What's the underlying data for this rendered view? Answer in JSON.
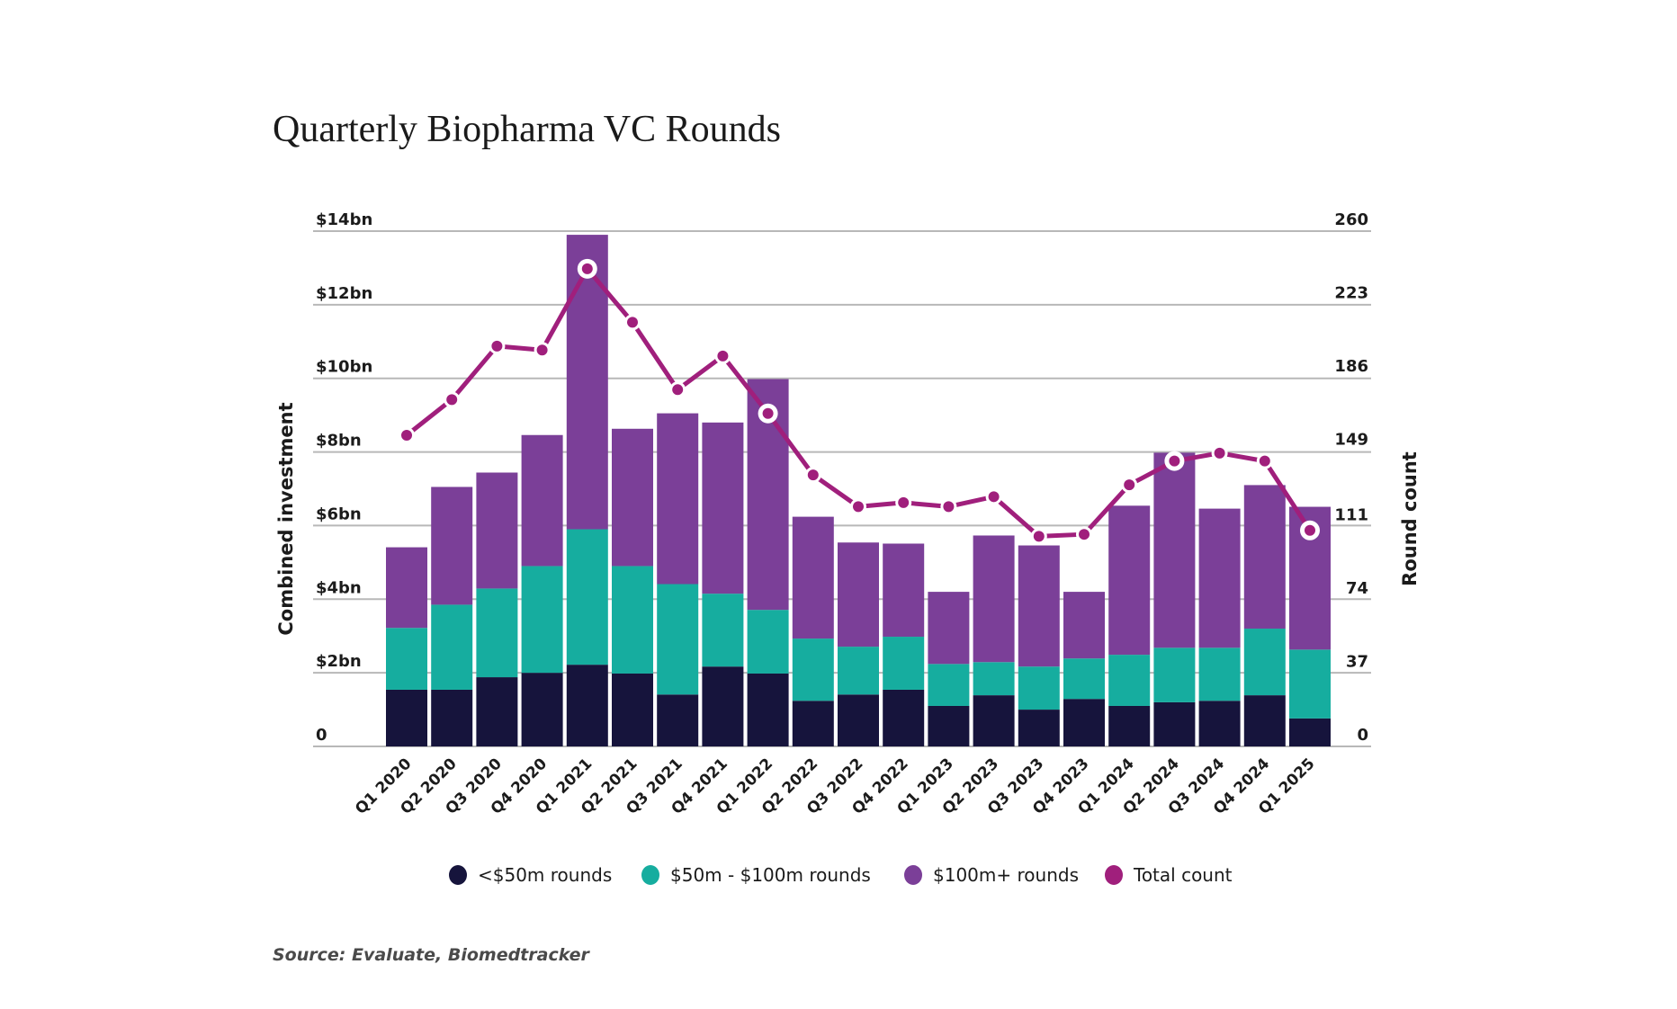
{
  "chart_data": {
    "type": "bar",
    "subtype": "stacked-bar-with-line",
    "title": "Quarterly Biopharma VC Rounds",
    "xlabel": "",
    "ylabel": "Combined investment",
    "y2label": "Round count",
    "ylim": [
      0,
      14
    ],
    "y2lim": [
      0,
      260
    ],
    "yticks": [
      "0",
      "$2bn",
      "$4bn",
      "$6bn",
      "$8bn",
      "$10bn",
      "$12bn",
      "$14bn"
    ],
    "ytick_values": [
      0,
      2,
      4,
      6,
      8,
      10,
      12,
      14
    ],
    "y2ticks": [
      "0",
      "37",
      "74",
      "111",
      "149",
      "186",
      "223",
      "260"
    ],
    "y2tick_values": [
      0,
      37,
      74,
      111,
      149,
      186,
      223,
      260
    ],
    "grid": true,
    "legend_position": "bottom",
    "categories": [
      "Q1 2020",
      "Q2 2020",
      "Q3 2020",
      "Q4 2020",
      "Q1 2021",
      "Q2 2021",
      "Q3 2021",
      "Q4 2021",
      "Q1 2022",
      "Q2 2022",
      "Q3 2022",
      "Q4 2022",
      "Q1 2023",
      "Q2 2023",
      "Q3 2023",
      "Q4 2023",
      "Q1 2024",
      "Q2 2024",
      "Q3 2024",
      "Q4 2024",
      "Q1 2025"
    ],
    "series": [
      {
        "name": "<$50m rounds",
        "type": "bar",
        "axis": "left",
        "unit": "$bn",
        "color": "#16143c",
        "values": [
          1.54,
          1.54,
          1.88,
          2.0,
          2.22,
          1.98,
          1.41,
          2.17,
          1.98,
          1.24,
          1.41,
          1.54,
          1.1,
          1.39,
          1.0,
          1.29,
          1.1,
          1.2,
          1.24,
          1.39,
          0.76
        ]
      },
      {
        "name": "$50m - $100m rounds",
        "type": "bar",
        "axis": "left",
        "unit": "$bn",
        "color": "#16ad9f",
        "values": [
          1.68,
          2.31,
          2.41,
          2.9,
          3.68,
          2.92,
          3.0,
          1.98,
          1.73,
          1.69,
          1.3,
          1.44,
          1.14,
          0.9,
          1.17,
          1.1,
          1.39,
          1.48,
          1.44,
          1.81,
          1.87
        ]
      },
      {
        "name": "$100m+ rounds",
        "type": "bar",
        "axis": "left",
        "unit": "$bn",
        "color": "#7b3f98",
        "values": [
          2.19,
          3.2,
          3.15,
          3.56,
          8.0,
          3.73,
          4.64,
          4.65,
          6.27,
          3.31,
          2.83,
          2.53,
          1.96,
          3.44,
          3.29,
          1.81,
          4.05,
          5.3,
          3.78,
          3.9,
          3.88
        ]
      },
      {
        "name": "Total count",
        "type": "line",
        "axis": "right",
        "color": "#a01f7c",
        "values": [
          157,
          175,
          202,
          200,
          241,
          214,
          180,
          197,
          168,
          137,
          121,
          123,
          121,
          126,
          106,
          107,
          132,
          144,
          148,
          144,
          109
        ],
        "highlighted_indices": [
          4,
          8,
          17,
          20
        ]
      }
    ]
  },
  "legend": [
    {
      "label": "<$50m rounds",
      "color": "#16143c"
    },
    {
      "label": "$50m - $100m rounds",
      "color": "#16ad9f"
    },
    {
      "label": "$100m+ rounds",
      "color": "#7b3f98"
    },
    {
      "label": "Total count",
      "color": "#a01f7c"
    }
  ],
  "source": "Source: Evaluate, Biomedtracker"
}
